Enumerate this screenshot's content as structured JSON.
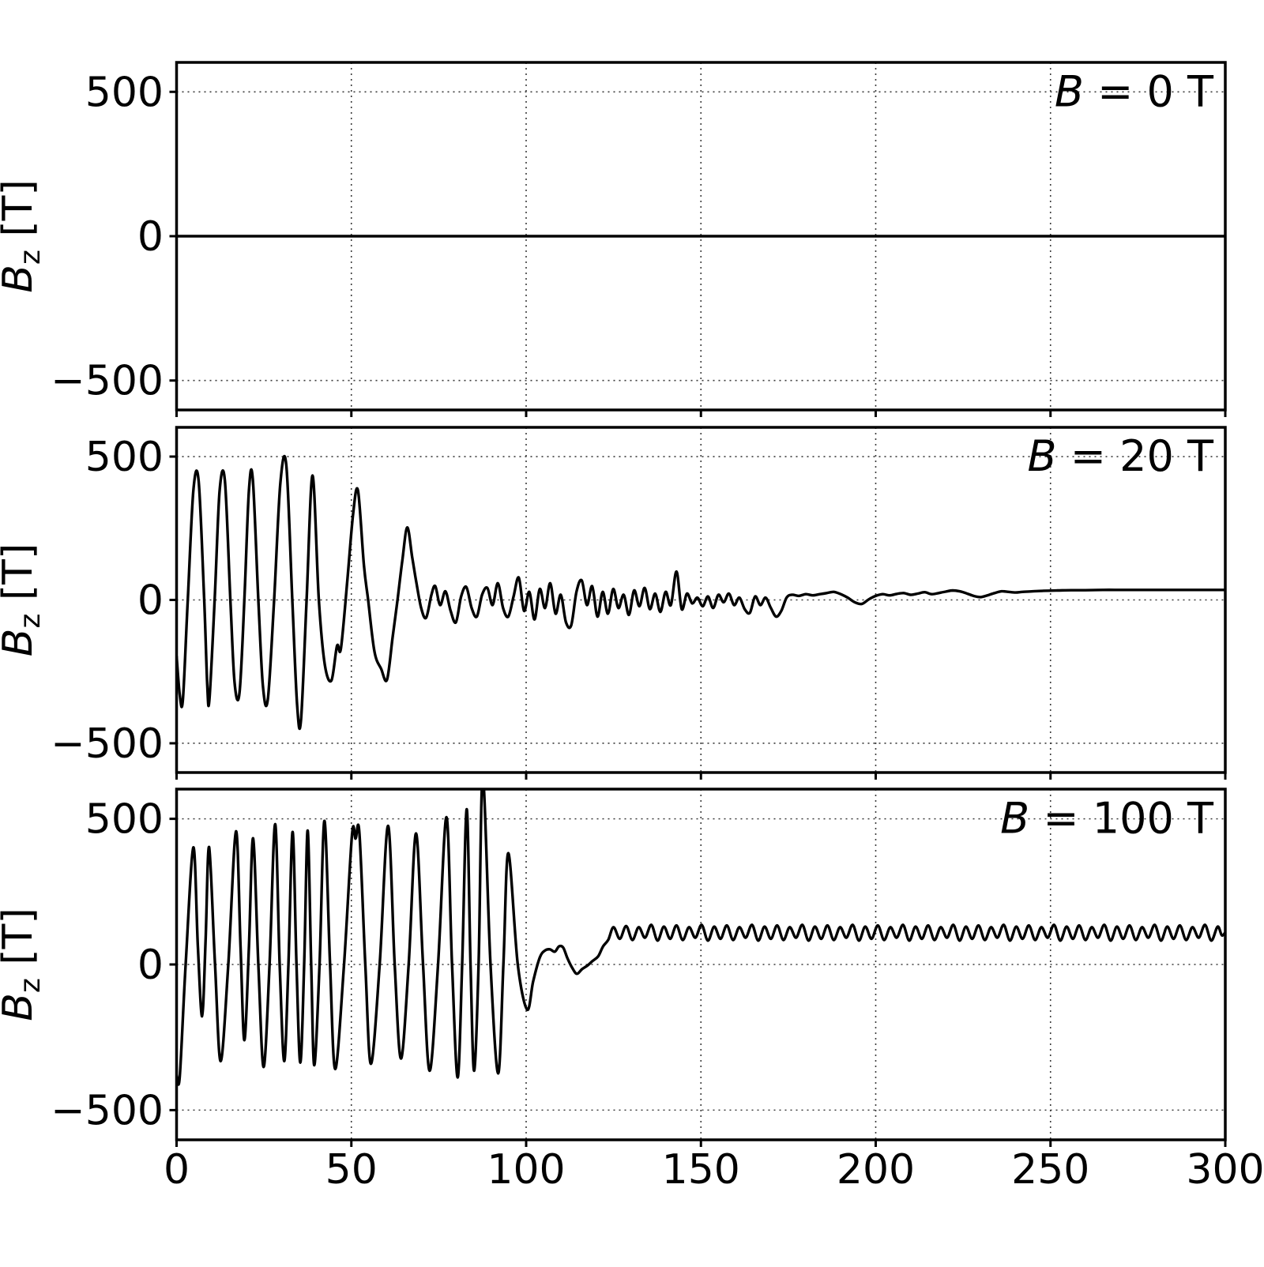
{
  "colors": {
    "line": "#000000",
    "grid": "#3c3c3c",
    "background": "#ffffff",
    "text": "#000000"
  },
  "axes": {
    "xlim": [
      0,
      300
    ],
    "ylim": [
      -602,
      602
    ],
    "x_ticks": [
      {
        "value": 0,
        "label": "0"
      },
      {
        "value": 50,
        "label": "50"
      },
      {
        "value": 100,
        "label": "100"
      },
      {
        "value": 150,
        "label": "150"
      },
      {
        "value": 200,
        "label": "200"
      },
      {
        "value": 250,
        "label": "250"
      },
      {
        "value": 300,
        "label": "300"
      }
    ],
    "y_ticks": [
      {
        "value": 500,
        "label": "500"
      },
      {
        "value": 0,
        "label": "0"
      },
      {
        "value": -500,
        "label": "−500"
      }
    ],
    "ylabel": {
      "symbol": "B",
      "subscript": "z",
      "rest": " [T]"
    },
    "grid": "dotted"
  },
  "chart_data": [
    {
      "type": "line",
      "annotation": {
        "symbol": "B",
        "rest": " = 0 T"
      },
      "points": [
        [
          0,
          0
        ],
        [
          300,
          0
        ]
      ]
    },
    {
      "type": "line",
      "annotation": {
        "symbol": "B",
        "rest": " = 20 T"
      },
      "points": [
        [
          0,
          -195
        ],
        [
          0.9,
          -330
        ],
        [
          1.8,
          -348
        ],
        [
          3.2,
          0
        ],
        [
          4.8,
          380
        ],
        [
          6.3,
          416
        ],
        [
          7.9,
          0
        ],
        [
          8.8,
          -300
        ],
        [
          9.4,
          -347
        ],
        [
          10.9,
          0
        ],
        [
          12.3,
          378
        ],
        [
          13.8,
          418
        ],
        [
          15.4,
          0
        ],
        [
          16.6,
          -290
        ],
        [
          18,
          -325
        ],
        [
          19.4,
          0
        ],
        [
          20.7,
          382
        ],
        [
          21.8,
          421
        ],
        [
          23.4,
          0
        ],
        [
          24.7,
          -300
        ],
        [
          26.1,
          -347
        ],
        [
          27.9,
          0
        ],
        [
          29.7,
          408
        ],
        [
          31.4,
          470
        ],
        [
          33.1,
          0
        ],
        [
          34.5,
          -370
        ],
        [
          35.6,
          -419
        ],
        [
          37.2,
          0
        ],
        [
          38.9,
          434
        ],
        [
          40.7,
          0
        ],
        [
          42.4,
          -225
        ],
        [
          44.3,
          -281
        ],
        [
          45.9,
          -160
        ],
        [
          47,
          -170
        ],
        [
          48.8,
          60
        ],
        [
          50.5,
          300
        ],
        [
          51.9,
          381
        ],
        [
          53.6,
          120
        ],
        [
          54.8,
          0
        ],
        [
          56.6,
          -180
        ],
        [
          58.5,
          -240
        ],
        [
          60.2,
          -278
        ],
        [
          61.8,
          -130
        ],
        [
          63.2,
          0
        ],
        [
          64.6,
          140
        ],
        [
          66,
          253
        ],
        [
          67.4,
          150
        ],
        [
          68.6,
          60
        ],
        [
          70,
          -30
        ],
        [
          71.4,
          -62
        ],
        [
          72.9,
          18
        ],
        [
          74,
          48
        ],
        [
          75.4,
          -18
        ],
        [
          76.9,
          30
        ],
        [
          78.4,
          -38
        ],
        [
          79.9,
          -78
        ],
        [
          81.4,
          12
        ],
        [
          82.9,
          45
        ],
        [
          84.4,
          -28
        ],
        [
          85.9,
          -58
        ],
        [
          87.4,
          18
        ],
        [
          88.9,
          42
        ],
        [
          90.4,
          -18
        ],
        [
          91.9,
          58
        ],
        [
          93.4,
          -28
        ],
        [
          94.9,
          -58
        ],
        [
          96.4,
          12
        ],
        [
          97.9,
          78
        ],
        [
          99.4,
          -38
        ],
        [
          100.9,
          28
        ],
        [
          102.4,
          -68
        ],
        [
          103.9,
          38
        ],
        [
          105.4,
          -28
        ],
        [
          106.9,
          58
        ],
        [
          108.4,
          -48
        ],
        [
          109.9,
          18
        ],
        [
          111.4,
          -78
        ],
        [
          112.9,
          -88
        ],
        [
          114.4,
          28
        ],
        [
          115.9,
          68
        ],
        [
          117.4,
          -18
        ],
        [
          118.9,
          48
        ],
        [
          120.4,
          -58
        ],
        [
          121.9,
          28
        ],
        [
          123.4,
          -48
        ],
        [
          124.9,
          38
        ],
        [
          126.4,
          -28
        ],
        [
          127.9,
          18
        ],
        [
          129.4,
          -52
        ],
        [
          130.9,
          33
        ],
        [
          132.4,
          -22
        ],
        [
          133.9,
          42
        ],
        [
          135.4,
          -32
        ],
        [
          136.9,
          22
        ],
        [
          138.4,
          -42
        ],
        [
          139.9,
          28
        ],
        [
          141.4,
          -18
        ],
        [
          143,
          99
        ],
        [
          144.5,
          -32
        ],
        [
          146,
          22
        ],
        [
          147.5,
          -12
        ],
        [
          149,
          8
        ],
        [
          150.5,
          -22
        ],
        [
          152,
          12
        ],
        [
          153.5,
          -28
        ],
        [
          155,
          18
        ],
        [
          156.5,
          -8
        ],
        [
          158,
          22
        ],
        [
          159.5,
          -18
        ],
        [
          161,
          8
        ],
        [
          162.5,
          -32
        ],
        [
          164,
          -45
        ],
        [
          165.5,
          12
        ],
        [
          167,
          -18
        ],
        [
          168.5,
          8
        ],
        [
          170,
          -28
        ],
        [
          171.5,
          -58
        ],
        [
          173,
          -38
        ],
        [
          174.5,
          8
        ],
        [
          176,
          18
        ],
        [
          178,
          14
        ],
        [
          180,
          20
        ],
        [
          182,
          16
        ],
        [
          184,
          20
        ],
        [
          186,
          24
        ],
        [
          188,
          28
        ],
        [
          190,
          20
        ],
        [
          192,
          8
        ],
        [
          194,
          -8
        ],
        [
          196,
          -14
        ],
        [
          198,
          2
        ],
        [
          200,
          14
        ],
        [
          202,
          20
        ],
        [
          204,
          16
        ],
        [
          206,
          21
        ],
        [
          208,
          24
        ],
        [
          210,
          18
        ],
        [
          212,
          22
        ],
        [
          214,
          27
        ],
        [
          216,
          20
        ],
        [
          218,
          24
        ],
        [
          220,
          29
        ],
        [
          222,
          33
        ],
        [
          224,
          30
        ],
        [
          226,
          23
        ],
        [
          228,
          14
        ],
        [
          230,
          10
        ],
        [
          232,
          16
        ],
        [
          234,
          24
        ],
        [
          236,
          30
        ],
        [
          238,
          28
        ],
        [
          240,
          26
        ],
        [
          242,
          28
        ],
        [
          245,
          30
        ],
        [
          248,
          32
        ],
        [
          252,
          33
        ],
        [
          256,
          34
        ],
        [
          260,
          34
        ],
        [
          265,
          35
        ],
        [
          270,
          35
        ],
        [
          275,
          35
        ],
        [
          280,
          35
        ],
        [
          285,
          35
        ],
        [
          290,
          35
        ],
        [
          295,
          35
        ],
        [
          300,
          35
        ]
      ]
    },
    {
      "type": "line",
      "annotation": {
        "symbol": "B",
        "rest": " = 100 T"
      },
      "points": [
        [
          0,
          -378
        ],
        [
          0.9,
          -386
        ],
        [
          2.6,
          0
        ],
        [
          4.8,
          402
        ],
        [
          6.1,
          60
        ],
        [
          7.3,
          -178
        ],
        [
          8.3,
          80
        ],
        [
          9.3,
          403
        ],
        [
          11,
          0
        ],
        [
          12.6,
          -332
        ],
        [
          14.8,
          0
        ],
        [
          17,
          457
        ],
        [
          18.3,
          60
        ],
        [
          19.4,
          -260
        ],
        [
          20.7,
          60
        ],
        [
          21.9,
          433
        ],
        [
          23.4,
          0
        ],
        [
          24.9,
          -352
        ],
        [
          26.6,
          0
        ],
        [
          28.2,
          482
        ],
        [
          29.5,
          0
        ],
        [
          30.8,
          -332
        ],
        [
          32,
          0
        ],
        [
          33.2,
          455
        ],
        [
          34.3,
          0
        ],
        [
          35.4,
          -337
        ],
        [
          36.5,
          0
        ],
        [
          37.5,
          460
        ],
        [
          38.5,
          0
        ],
        [
          39.4,
          -346
        ],
        [
          40.9,
          0
        ],
        [
          42.3,
          493
        ],
        [
          43.9,
          0
        ],
        [
          45.4,
          -359
        ],
        [
          47.9,
          0
        ],
        [
          50.2,
          446
        ],
        [
          51.2,
          432
        ],
        [
          52.3,
          452
        ],
        [
          54,
          0
        ],
        [
          55.6,
          -341
        ],
        [
          58.1,
          0
        ],
        [
          60.5,
          476
        ],
        [
          62.4,
          0
        ],
        [
          64.2,
          -323
        ],
        [
          66.4,
          0
        ],
        [
          68.5,
          450
        ],
        [
          70.5,
          0
        ],
        [
          72.4,
          -365
        ],
        [
          74.8,
          0
        ],
        [
          77.2,
          506
        ],
        [
          78.8,
          0
        ],
        [
          80.4,
          -388
        ],
        [
          81.7,
          0
        ],
        [
          83,
          533
        ],
        [
          84.1,
          0
        ],
        [
          85.1,
          -365
        ],
        [
          86.4,
          0
        ],
        [
          87.6,
          645
        ],
        [
          89.8,
          0
        ],
        [
          92,
          -374
        ],
        [
          93.5,
          0
        ],
        [
          94.9,
          382
        ],
        [
          97.6,
          0
        ],
        [
          100.3,
          -155
        ],
        [
          102,
          -58
        ],
        [
          103.9,
          24
        ],
        [
          105.4,
          48
        ],
        [
          106.8,
          52
        ],
        [
          108.2,
          44
        ],
        [
          109.4,
          62
        ],
        [
          110.6,
          58
        ],
        [
          111.8,
          22
        ],
        [
          113.2,
          -12
        ],
        [
          114.5,
          -32
        ],
        [
          116,
          -16
        ],
        [
          117.5,
          -4
        ],
        [
          119,
          12
        ],
        [
          120.6,
          28
        ],
        [
          122,
          62
        ],
        [
          123.5,
          85
        ],
        [
          125,
          128
        ],
        [
          126.8,
          88
        ],
        [
          128.6,
          132
        ],
        [
          130.4,
          84
        ],
        [
          132.2,
          128
        ],
        [
          134,
          92
        ],
        [
          135.8,
          136
        ],
        [
          137.6,
          82
        ],
        [
          139.4,
          130
        ],
        [
          141.2,
          88
        ],
        [
          143,
          134
        ],
        [
          144.8,
          84
        ],
        [
          146.6,
          128
        ],
        [
          148.4,
          92
        ],
        [
          150.2,
          136
        ],
        [
          152,
          82
        ],
        [
          153.8,
          130
        ],
        [
          155.6,
          88
        ],
        [
          157.4,
          134
        ],
        [
          159.2,
          84
        ],
        [
          161,
          128
        ],
        [
          162.8,
          92
        ],
        [
          164.6,
          136
        ],
        [
          166.4,
          82
        ],
        [
          168.2,
          130
        ],
        [
          170,
          88
        ],
        [
          171.8,
          134
        ],
        [
          173.6,
          84
        ],
        [
          175.4,
          128
        ],
        [
          177.2,
          92
        ],
        [
          179,
          136
        ],
        [
          180.8,
          82
        ],
        [
          182.6,
          130
        ],
        [
          184.4,
          88
        ],
        [
          186.2,
          134
        ],
        [
          188,
          84
        ],
        [
          189.8,
          128
        ],
        [
          191.6,
          92
        ],
        [
          193.4,
          136
        ],
        [
          195.2,
          82
        ],
        [
          197,
          130
        ],
        [
          198.8,
          88
        ],
        [
          200.6,
          134
        ],
        [
          202.4,
          84
        ],
        [
          204.2,
          128
        ],
        [
          206,
          92
        ],
        [
          207.8,
          136
        ],
        [
          209.6,
          82
        ],
        [
          211.4,
          130
        ],
        [
          213.2,
          88
        ],
        [
          215,
          134
        ],
        [
          216.8,
          84
        ],
        [
          218.6,
          128
        ],
        [
          220.4,
          92
        ],
        [
          222.2,
          136
        ],
        [
          224,
          82
        ],
        [
          225.8,
          130
        ],
        [
          227.6,
          88
        ],
        [
          229.4,
          134
        ],
        [
          231.2,
          84
        ],
        [
          233,
          128
        ],
        [
          234.8,
          92
        ],
        [
          236.6,
          136
        ],
        [
          238.4,
          82
        ],
        [
          240.2,
          130
        ],
        [
          242,
          88
        ],
        [
          243.8,
          134
        ],
        [
          245.6,
          84
        ],
        [
          247.4,
          128
        ],
        [
          249.2,
          92
        ],
        [
          251,
          136
        ],
        [
          252.8,
          82
        ],
        [
          254.6,
          130
        ],
        [
          256.4,
          88
        ],
        [
          258.2,
          134
        ],
        [
          260,
          84
        ],
        [
          261.8,
          128
        ],
        [
          263.6,
          92
        ],
        [
          265.4,
          136
        ],
        [
          267.2,
          82
        ],
        [
          269,
          130
        ],
        [
          270.8,
          88
        ],
        [
          272.6,
          134
        ],
        [
          274.4,
          84
        ],
        [
          276.2,
          128
        ],
        [
          278,
          92
        ],
        [
          279.8,
          136
        ],
        [
          281.6,
          82
        ],
        [
          283.4,
          130
        ],
        [
          285.2,
          88
        ],
        [
          287,
          134
        ],
        [
          288.8,
          84
        ],
        [
          290.6,
          128
        ],
        [
          292.4,
          92
        ],
        [
          294.2,
          136
        ],
        [
          296,
          82
        ],
        [
          297.8,
          130
        ],
        [
          299,
          100
        ],
        [
          300,
          110
        ]
      ]
    }
  ]
}
